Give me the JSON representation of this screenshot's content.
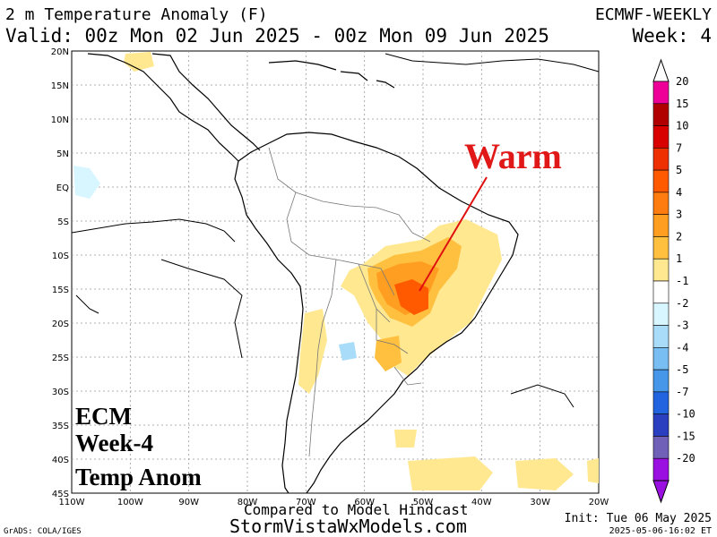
{
  "header": {
    "title": "2 m Temperature Anomaly (F)",
    "valid": "Valid: 00z Mon 02 Jun 2025 - 00z Mon 09 Jun 2025",
    "model": "ECMWF-WEEKLY",
    "week": "Week: 4"
  },
  "map": {
    "lat_labels": [
      "20N",
      "15N",
      "10N",
      "5N",
      "EQ",
      "5S",
      "10S",
      "15S",
      "20S",
      "25S",
      "30S",
      "35S",
      "40S",
      "45S"
    ],
    "lon_labels": [
      "110W",
      "100W",
      "90W",
      "80W",
      "70W",
      "60W",
      "50W",
      "40W",
      "30W",
      "20W"
    ],
    "warm_label": "Warm",
    "overlay_lines": [
      "ECM",
      "Week-4",
      "Temp Anom"
    ]
  },
  "legend": {
    "labels": [
      "20",
      "15",
      "10",
      "7",
      "5",
      "4",
      "3",
      "2",
      "1",
      "-1",
      "-2",
      "-3",
      "-4",
      "-5",
      "-7",
      "-10",
      "-15",
      "-20"
    ],
    "colors": [
      "#ee0098",
      "#b00000",
      "#d90000",
      "#ee3000",
      "#ff5a00",
      "#ff7c10",
      "#ff9e20",
      "#ffc040",
      "#ffe890",
      "#ffffff",
      "#d8f6ff",
      "#a8dcf8",
      "#78bef2",
      "#4696ea",
      "#2264e0",
      "#2a3ec0",
      "#7060b8",
      "#9a10e0"
    ]
  },
  "footer": {
    "compared": "Compared to Model Hindcast",
    "site": "StormVistaWxModels.com",
    "init": "Init: Tue 06 May 2025",
    "stamp": "2025-05-06-16:02 ET",
    "grads": "GrADS: COLA/IGES"
  }
}
